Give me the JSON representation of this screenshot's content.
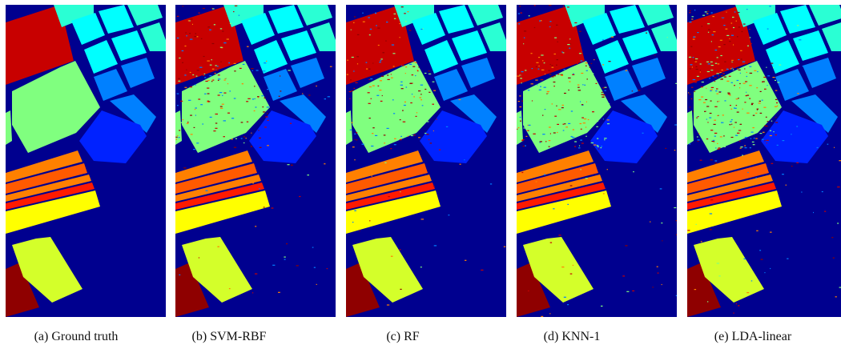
{
  "figure": {
    "panels": [
      {
        "id": "a",
        "caption": "(a)   Ground truth",
        "noise": 0
      },
      {
        "id": "b",
        "caption": "(b) SVM-RBF",
        "noise": 0.06
      },
      {
        "id": "c",
        "caption": "(c) RF",
        "noise": 0.05
      },
      {
        "id": "d",
        "caption": "(d) KNN-1",
        "noise": 0.07
      },
      {
        "id": "e",
        "caption": "(e) LDA-linear",
        "noise": 0.1
      }
    ],
    "colors": {
      "background": "#00008f",
      "dark_red": "#8f0000",
      "red": "#c80000",
      "light_green": "#80ff7f",
      "cyan": "#00ffff",
      "aqua_green": "#2affd4",
      "blue_light": "#0080ff",
      "blue": "#0022ff",
      "orange": "#ff8000",
      "orange_dark": "#ff5a00",
      "red_bright": "#ff1a00",
      "yellow": "#ffff00",
      "yellow_green": "#d4ff2a"
    }
  }
}
